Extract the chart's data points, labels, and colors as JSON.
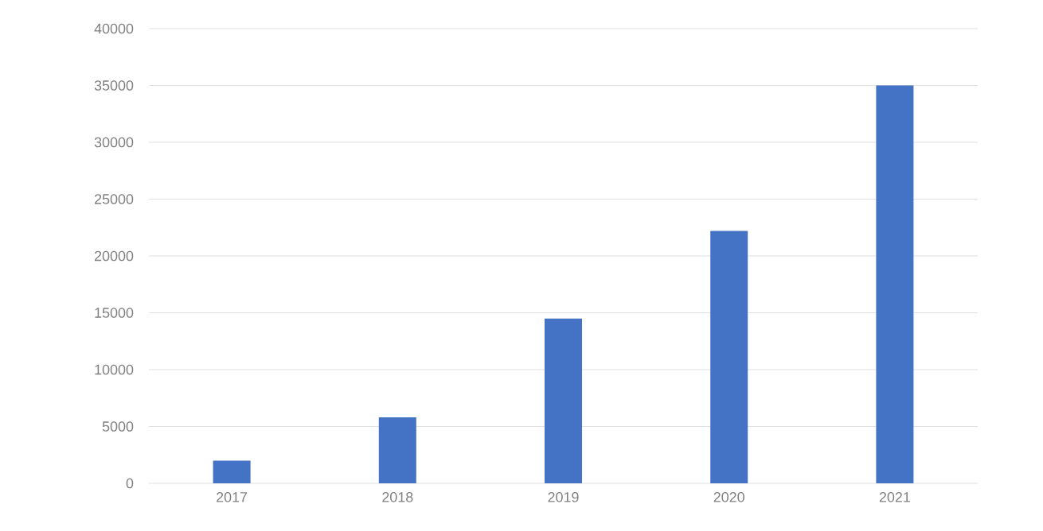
{
  "chart_data": {
    "type": "bar",
    "categories": [
      "2017",
      "2018",
      "2019",
      "2020",
      "2021"
    ],
    "values": [
      2000,
      5800,
      14500,
      22200,
      35000
    ],
    "color": "#4472c4",
    "ylim": [
      0,
      40000
    ],
    "yticks": [
      0,
      5000,
      10000,
      15000,
      20000,
      25000,
      30000,
      35000,
      40000
    ],
    "grid": "y"
  }
}
